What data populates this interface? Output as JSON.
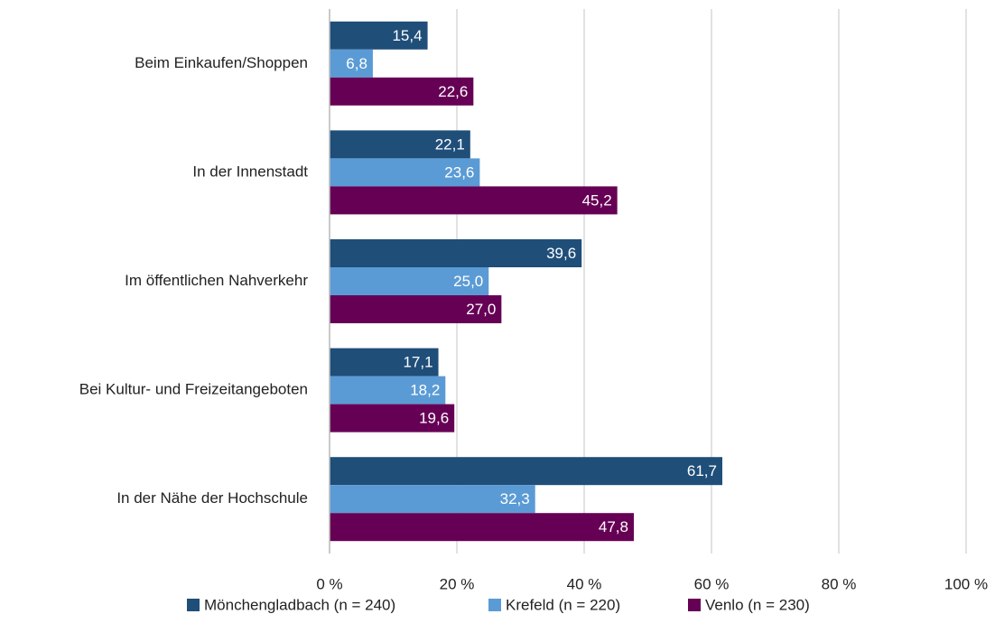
{
  "chart_data": {
    "type": "barh",
    "categories": [
      "Beim Einkaufen/Shoppen",
      "In der Innenstadt",
      "Im öffentlichen Nahverkehr",
      "Bei Kultur- und Freizeitangeboten",
      "In der Nähe der Hochschule"
    ],
    "series": [
      {
        "name": "Mönchengladbach (n = 240)",
        "color": "#1f4e79",
        "values": [
          15.4,
          22.1,
          39.6,
          17.1,
          61.7
        ],
        "value_labels": [
          "15,4",
          "22,1",
          "39,6",
          "17,1",
          "61,7"
        ]
      },
      {
        "name": "Krefeld (n = 220)",
        "color": "#5b9bd5",
        "values": [
          6.8,
          23.6,
          25.0,
          18.2,
          32.3
        ],
        "value_labels": [
          "6,8",
          "23,6",
          "25,0",
          "18,2",
          "32,3"
        ]
      },
      {
        "name": "Venlo (n = 230)",
        "color": "#660055",
        "values": [
          22.6,
          45.2,
          27.0,
          19.6,
          47.8
        ],
        "value_labels": [
          "22,6",
          "45,2",
          "27,0",
          "19,6",
          "47,8"
        ]
      }
    ],
    "xlim": [
      0,
      100
    ],
    "xticks": [
      {
        "value": 0,
        "label": "0 %"
      },
      {
        "value": 20,
        "label": "20 %"
      },
      {
        "value": 40,
        "label": "40 %"
      },
      {
        "value": 60,
        "label": "60 %"
      },
      {
        "value": 80,
        "label": "80 %"
      },
      {
        "value": 100,
        "label": "100 %"
      }
    ],
    "grid": true,
    "legend": "bottom"
  }
}
